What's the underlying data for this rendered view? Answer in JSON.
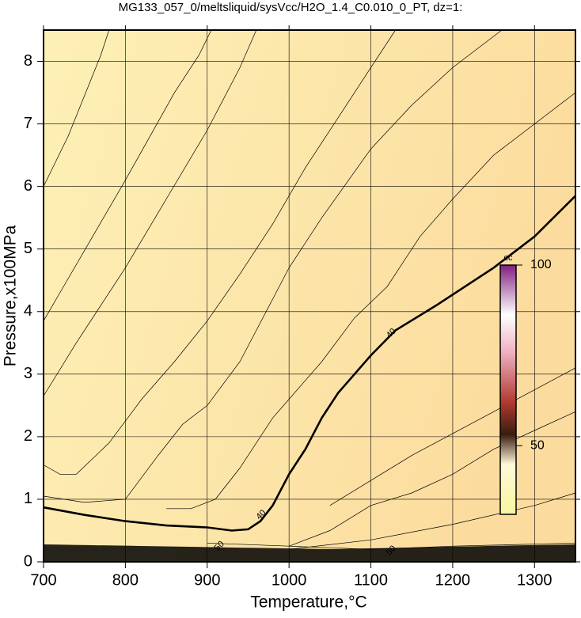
{
  "chart_data": {
    "type": "contour",
    "title": "MG133_057_0/meltsliquid/sysVcc/H2O_1.4_C0.010_0_PT, dz=1:",
    "x_label": "Temperature,°C",
    "y_label": "Pressure,x100MPa",
    "xlim": [
      700,
      1350
    ],
    "ylim": [
      0,
      8.5
    ],
    "xticks": [
      700,
      800,
      900,
      1000,
      1100,
      1200,
      1300
    ],
    "yticks": [
      0,
      1,
      2,
      3,
      4,
      5,
      6,
      7,
      8
    ],
    "grid": true,
    "series": [
      {
        "bold": true,
        "x": [
          700,
          750,
          800,
          850,
          900,
          930,
          950,
          965,
          980,
          1000,
          1020,
          1040,
          1060,
          1080,
          1100,
          1130,
          1180,
          1250,
          1300,
          1350
        ],
        "values": [
          0.87,
          0.75,
          0.65,
          0.58,
          0.55,
          0.5,
          0.52,
          0.65,
          0.9,
          1.4,
          1.8,
          2.3,
          2.7,
          3.0,
          3.3,
          3.7,
          4.1,
          4.7,
          5.2,
          5.85
        ]
      },
      {
        "bold": false,
        "x": [
          700,
          730,
          770,
          780
        ],
        "values": [
          6.0,
          6.8,
          8.1,
          8.5
        ]
      },
      {
        "bold": false,
        "x": [
          700,
          720,
          760,
          800,
          830,
          860,
          890,
          905
        ],
        "values": [
          3.85,
          4.3,
          5.2,
          6.1,
          6.8,
          7.5,
          8.1,
          8.5
        ]
      },
      {
        "bold": false,
        "x": [
          700,
          740,
          800,
          850,
          900,
          940,
          960
        ],
        "values": [
          2.65,
          3.5,
          4.7,
          5.8,
          6.9,
          7.9,
          8.5
        ]
      },
      {
        "bold": false,
        "x": [
          700,
          720,
          740,
          780,
          820,
          860,
          900,
          940,
          980,
          1020,
          1060,
          1100,
          1130
        ],
        "values": [
          1.55,
          1.4,
          1.4,
          1.9,
          2.6,
          3.2,
          3.85,
          4.6,
          5.4,
          6.3,
          7.1,
          7.9,
          8.5
        ]
      },
      {
        "bold": false,
        "x": [
          700,
          750,
          800,
          840,
          870,
          900,
          940,
          960,
          980,
          1000,
          1040,
          1100,
          1150,
          1200,
          1260
        ],
        "values": [
          1.05,
          0.95,
          1.0,
          1.7,
          2.2,
          2.5,
          3.2,
          3.7,
          4.2,
          4.7,
          5.5,
          6.6,
          7.3,
          7.9,
          8.5
        ]
      },
      {
        "bold": false,
        "x": [
          850,
          880,
          910,
          940,
          980,
          1000,
          1040,
          1080,
          1120,
          1160,
          1200,
          1250,
          1300,
          1350
        ],
        "values": [
          0.85,
          0.85,
          1.0,
          1.5,
          2.3,
          2.6,
          3.2,
          3.9,
          4.4,
          5.2,
          5.8,
          6.5,
          7.0,
          7.5
        ]
      },
      {
        "bold": false,
        "x": [
          1050,
          1150,
          1250,
          1350
        ],
        "values": [
          0.9,
          1.7,
          2.4,
          3.1
        ]
      },
      {
        "bold": false,
        "x": [
          1000,
          1050,
          1100,
          1150,
          1200,
          1250,
          1300,
          1350
        ],
        "values": [
          0.25,
          0.5,
          0.9,
          1.1,
          1.4,
          1.8,
          2.1,
          2.4
        ]
      },
      {
        "bold": false,
        "x": [
          1000,
          1100,
          1200,
          1300,
          1350
        ],
        "values": [
          0.2,
          0.35,
          0.6,
          0.9,
          1.1
        ]
      },
      {
        "bold": false,
        "x": [
          900,
          1000,
          1100,
          1200,
          1350
        ],
        "values": [
          0.3,
          0.25,
          0.2,
          0.25,
          0.3
        ]
      }
    ],
    "contour_labels": [
      {
        "text": "40",
        "x": 966,
        "y": 0.75
      },
      {
        "text": "40",
        "x": 1125,
        "y": 3.65
      },
      {
        "text": "50",
        "x": 915,
        "y": 0.25
      },
      {
        "text": "50",
        "x": 1125,
        "y": 0.18
      }
    ],
    "colorbar": {
      "label": "cc",
      "lim": [
        31,
        100
      ],
      "ticks": [
        50,
        100
      ]
    }
  }
}
